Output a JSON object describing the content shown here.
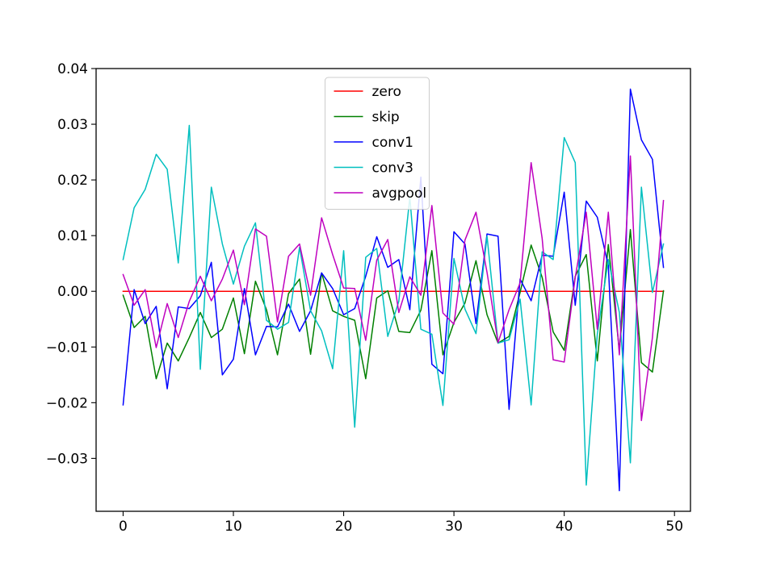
{
  "chart_data": {
    "type": "line",
    "title": "",
    "xlabel": "",
    "ylabel": "",
    "xlim": [
      -2.45,
      51.45
    ],
    "ylim": [
      -0.0395,
      0.04
    ],
    "xticks": [
      0,
      10,
      20,
      30,
      40,
      50
    ],
    "xtick_labels": [
      "0",
      "10",
      "20",
      "30",
      "40",
      "50"
    ],
    "yticks": [
      -0.03,
      -0.02,
      -0.01,
      0.0,
      0.01,
      0.02,
      0.03,
      0.04
    ],
    "ytick_labels": [
      "−0.03",
      "−0.02",
      "−0.01",
      "0.00",
      "0.01",
      "0.02",
      "0.03",
      "0.04"
    ],
    "grid": false,
    "legend_position": "top-center",
    "x": [
      0,
      1,
      2,
      3,
      4,
      5,
      6,
      7,
      8,
      9,
      10,
      11,
      12,
      13,
      14,
      15,
      16,
      17,
      18,
      19,
      20,
      21,
      22,
      23,
      24,
      25,
      26,
      27,
      28,
      29,
      30,
      31,
      32,
      33,
      34,
      35,
      36,
      37,
      38,
      39,
      40,
      41,
      42,
      43,
      44,
      45,
      46,
      47,
      48,
      49
    ],
    "series": [
      {
        "name": "zero",
        "color": "#ff0000",
        "values": [
          0,
          0,
          0,
          0,
          0,
          0,
          0,
          0,
          0,
          0,
          0,
          0,
          0,
          0,
          0,
          0,
          0,
          0,
          0,
          0,
          0,
          0,
          0,
          0,
          0,
          0,
          0,
          0,
          0,
          0,
          0,
          0,
          0,
          0,
          0,
          0,
          0,
          0,
          0,
          0,
          0,
          0,
          0,
          0,
          0,
          0,
          0,
          0,
          0,
          0
        ]
      },
      {
        "name": "skip",
        "color": "#008000",
        "values": [
          -0.0007,
          -0.0065,
          -0.0045,
          -0.0157,
          -0.0093,
          -0.0125,
          -0.0083,
          -0.0038,
          -0.0083,
          -0.0068,
          -0.0012,
          -0.0112,
          0.0018,
          -0.0033,
          -0.0114,
          -0.0004,
          0.0022,
          -0.0113,
          0.0033,
          -0.0035,
          -0.0045,
          -0.0052,
          -0.0157,
          -0.0012,
          0.0001,
          -0.0072,
          -0.0074,
          -0.0034,
          0.0073,
          -0.0114,
          -0.0056,
          -0.0021,
          0.0055,
          -0.0042,
          -0.0093,
          -0.0081,
          -0.0002,
          0.0083,
          0.0025,
          -0.0073,
          -0.0106,
          0.0027,
          0.0066,
          -0.0125,
          0.0084,
          -0.0106,
          0.0111,
          -0.0128,
          -0.0145,
          0.0001
        ]
      },
      {
        "name": "conv1",
        "color": "#0000ff",
        "values": [
          -0.0204,
          0.0003,
          -0.0058,
          -0.0027,
          -0.0175,
          -0.0028,
          -0.0031,
          -0.0008,
          0.0052,
          -0.015,
          -0.0122,
          0.0005,
          -0.0114,
          -0.0063,
          -0.0064,
          -0.0023,
          -0.0072,
          -0.0035,
          0.0033,
          0.0005,
          -0.0042,
          -0.0031,
          0.0027,
          0.0098,
          0.0043,
          0.0057,
          -0.0033,
          0.0205,
          -0.0131,
          -0.0148,
          0.0107,
          0.0085,
          -0.0058,
          0.0103,
          0.0099,
          -0.0212,
          0.0022,
          -0.0017,
          0.0065,
          0.0063,
          0.0178,
          -0.0025,
          0.0162,
          0.0133,
          0.0046,
          -0.0358,
          0.0363,
          0.0272,
          0.0237,
          0.0043
        ]
      },
      {
        "name": "conv3",
        "color": "#00bfbf",
        "values": [
          0.0057,
          0.015,
          0.0183,
          0.0246,
          0.0219,
          0.0051,
          0.0298,
          -0.014,
          0.0187,
          0.0085,
          0.0013,
          0.0081,
          0.0123,
          -0.0052,
          -0.0068,
          -0.0056,
          0.0079,
          -0.0035,
          -0.0071,
          -0.0139,
          0.0073,
          -0.0244,
          0.0061,
          0.0077,
          -0.0081,
          -0.0018,
          0.0169,
          -0.0068,
          -0.0077,
          -0.0205,
          0.0059,
          -0.0032,
          -0.0076,
          0.0099,
          -0.0093,
          -0.0087,
          -0.0014,
          -0.0204,
          0.0071,
          0.0057,
          0.0276,
          0.0231,
          -0.0348,
          -0.0077,
          0.0057,
          -0.0038,
          -0.0308,
          0.0187,
          -0.0002,
          0.0085
        ]
      },
      {
        "name": "avgpool",
        "color": "#bf00bf",
        "values": [
          0.003,
          -0.0025,
          0.0003,
          -0.0101,
          -0.0022,
          -0.0083,
          -0.0018,
          0.0027,
          -0.0017,
          0.0022,
          0.0074,
          -0.0024,
          0.0112,
          0.0099,
          -0.0055,
          0.0063,
          0.0085,
          -0.0007,
          0.0132,
          0.0066,
          0.0006,
          0.0005,
          -0.0088,
          0.0056,
          0.0093,
          -0.0038,
          0.0026,
          -0.0007,
          0.0154,
          -0.0039,
          -0.0059,
          0.0092,
          0.0142,
          0.0034,
          -0.0092,
          -0.0033,
          0.0015,
          0.0231,
          0.0095,
          -0.0123,
          -0.0127,
          0.0025,
          0.0142,
          -0.0068,
          0.0142,
          -0.0114,
          0.0243,
          -0.0232,
          -0.0083,
          0.0163
        ]
      }
    ]
  }
}
